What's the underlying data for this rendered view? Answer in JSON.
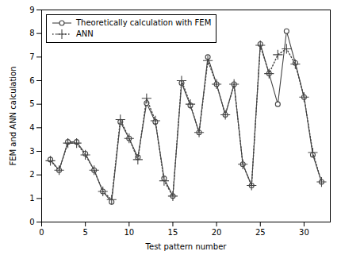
{
  "chart_data": {
    "type": "line",
    "x": [
      1,
      2,
      3,
      4,
      5,
      6,
      7,
      8,
      9,
      10,
      11,
      12,
      13,
      14,
      15,
      16,
      17,
      18,
      19,
      20,
      21,
      22,
      23,
      24,
      25,
      26,
      27,
      28,
      29,
      30,
      31,
      32
    ],
    "series": [
      {
        "name": "Theoretically calculation with FEM",
        "color": "#444444",
        "marker": "circle",
        "line_style": "solid",
        "values": [
          2.65,
          2.2,
          3.4,
          3.4,
          2.9,
          2.2,
          1.3,
          0.85,
          4.25,
          3.55,
          2.75,
          5.05,
          4.25,
          1.85,
          1.1,
          5.9,
          4.95,
          3.8,
          7.0,
          5.85,
          4.55,
          5.85,
          2.45,
          1.55,
          7.55,
          6.3,
          5.0,
          8.1,
          6.75,
          5.3,
          2.85,
          1.7
        ]
      },
      {
        "name": "ANN",
        "color": "#444444",
        "marker": "plus",
        "line_style": "dotted",
        "values": [
          2.6,
          2.2,
          3.35,
          3.35,
          2.85,
          2.2,
          1.3,
          0.95,
          4.35,
          3.55,
          2.65,
          5.25,
          4.3,
          1.75,
          1.1,
          6.0,
          5.0,
          3.8,
          6.85,
          5.85,
          4.55,
          5.85,
          2.45,
          1.55,
          7.5,
          6.3,
          7.1,
          7.35,
          6.7,
          5.3,
          2.95,
          1.7
        ]
      }
    ],
    "xlabel": "Test pattern number",
    "ylabel": "FEM and ANN calculation",
    "xlim": [
      0,
      33
    ],
    "ylim": [
      0,
      9
    ],
    "xticks": [
      0,
      5,
      10,
      15,
      20,
      25,
      30
    ],
    "yticks": [
      0,
      1,
      2,
      3,
      4,
      5,
      6,
      7,
      8,
      9
    ],
    "legend": "upper left",
    "grid": false
  }
}
